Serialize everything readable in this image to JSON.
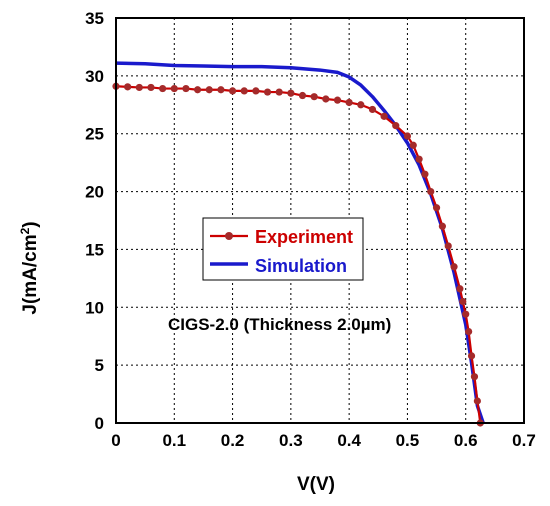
{
  "chart_data": {
    "type": "line",
    "xlabel": "V(V)",
    "ylabel": "J(mA/cm",
    "ylabel_superscript": "2",
    "ylabel_suffix": ")",
    "xlim": [
      0,
      0.7
    ],
    "ylim": [
      0,
      35
    ],
    "x_ticks": [
      "0",
      "0.1",
      "0.2",
      "0.3",
      "0.4",
      "0.5",
      "0.6",
      "0.7"
    ],
    "y_ticks": [
      "0",
      "5",
      "10",
      "15",
      "20",
      "25",
      "30",
      "35"
    ],
    "grid": true,
    "legend_position": "center-left",
    "annotation": "CIGS-2.0 (Thickness 2.0µm)",
    "series": [
      {
        "name": "Experiment",
        "style": "line-markers",
        "color": "#cc0000",
        "marker_color": "#a52a2a",
        "x": [
          0,
          0.02,
          0.04,
          0.06,
          0.08,
          0.1,
          0.12,
          0.14,
          0.16,
          0.18,
          0.2,
          0.22,
          0.24,
          0.26,
          0.28,
          0.3,
          0.32,
          0.34,
          0.36,
          0.38,
          0.4,
          0.42,
          0.44,
          0.46,
          0.48,
          0.5,
          0.51,
          0.52,
          0.53,
          0.54,
          0.55,
          0.56,
          0.57,
          0.58,
          0.59,
          0.595,
          0.6,
          0.605,
          0.61,
          0.615,
          0.62,
          0.625
        ],
        "y": [
          29.1,
          29.05,
          29.0,
          29.0,
          28.9,
          28.9,
          28.9,
          28.8,
          28.8,
          28.8,
          28.7,
          28.7,
          28.7,
          28.6,
          28.6,
          28.5,
          28.3,
          28.2,
          28.0,
          27.9,
          27.7,
          27.5,
          27.1,
          26.5,
          25.7,
          24.8,
          24.0,
          22.8,
          21.5,
          20.0,
          18.6,
          17.0,
          15.3,
          13.5,
          11.6,
          10.5,
          9.4,
          7.9,
          5.8,
          4.0,
          1.9,
          0.0
        ]
      },
      {
        "name": "Simulation",
        "style": "line",
        "color": "#1a1acc",
        "x": [
          0,
          0.05,
          0.1,
          0.15,
          0.2,
          0.25,
          0.3,
          0.35,
          0.38,
          0.4,
          0.42,
          0.44,
          0.46,
          0.48,
          0.5,
          0.52,
          0.54,
          0.56,
          0.58,
          0.6,
          0.61,
          0.62,
          0.63
        ],
        "y": [
          31.1,
          31.05,
          30.9,
          30.85,
          30.8,
          30.8,
          30.7,
          30.5,
          30.3,
          29.9,
          29.2,
          28.2,
          27.0,
          25.7,
          24.2,
          22.3,
          19.8,
          16.8,
          13.0,
          8.5,
          5.2,
          1.5,
          0.0
        ]
      }
    ]
  }
}
